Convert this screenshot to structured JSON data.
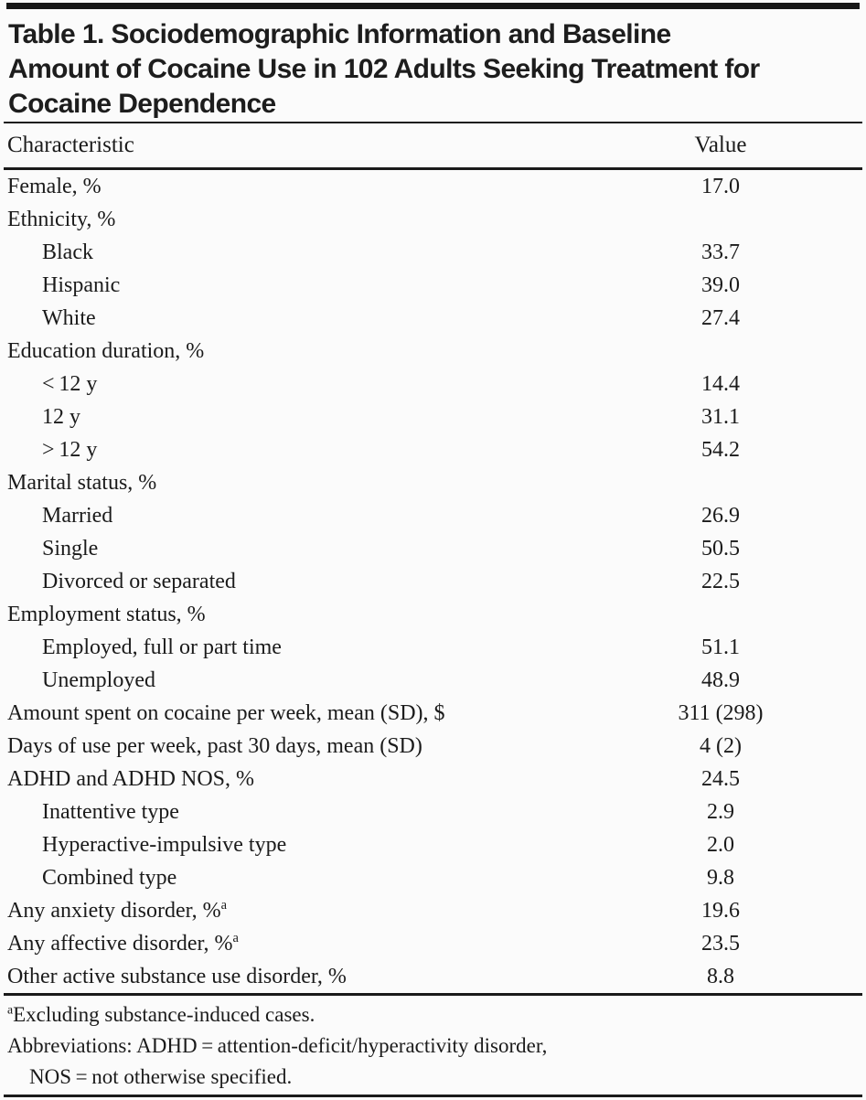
{
  "table": {
    "title_lines": [
      "Table 1. Sociodemographic Information and Baseline",
      "Amount of Cocaine Use in 102 Adults Seeking Treatment for",
      "Cocaine Dependence"
    ],
    "columns": {
      "characteristic": "Characteristic",
      "value": "Value"
    },
    "rows": [
      {
        "label": "Female, %",
        "value": "17.0",
        "indent": false
      },
      {
        "label": "Ethnicity, %",
        "value": "",
        "indent": false
      },
      {
        "label": "Black",
        "value": "33.7",
        "indent": true
      },
      {
        "label": "Hispanic",
        "value": "39.0",
        "indent": true
      },
      {
        "label": "White",
        "value": "27.4",
        "indent": true
      },
      {
        "label": "Education duration, %",
        "value": "",
        "indent": false
      },
      {
        "label": "< 12 y",
        "value": "14.4",
        "indent": true
      },
      {
        "label": "12 y",
        "value": "31.1",
        "indent": true
      },
      {
        "label": "> 12 y",
        "value": "54.2",
        "indent": true
      },
      {
        "label": "Marital status, %",
        "value": "",
        "indent": false
      },
      {
        "label": "Married",
        "value": "26.9",
        "indent": true
      },
      {
        "label": "Single",
        "value": "50.5",
        "indent": true
      },
      {
        "label": "Divorced or separated",
        "value": "22.5",
        "indent": true
      },
      {
        "label": "Employment status, %",
        "value": "",
        "indent": false
      },
      {
        "label": "Employed, full or part time",
        "value": "51.1",
        "indent": true
      },
      {
        "label": "Unemployed",
        "value": "48.9",
        "indent": true
      },
      {
        "label": "Amount spent on cocaine per week, mean (SD), $",
        "value": "311 (298)",
        "indent": false
      },
      {
        "label": "Days of use per week, past 30 days, mean (SD)",
        "value": "4 (2)",
        "indent": false
      },
      {
        "label": "ADHD and ADHD NOS, %",
        "value": "24.5",
        "indent": false
      },
      {
        "label": "Inattentive type",
        "value": "2.9",
        "indent": true
      },
      {
        "label": "Hyperactive-impulsive type",
        "value": "2.0",
        "indent": true
      },
      {
        "label": "Combined type",
        "value": "9.8",
        "indent": true
      },
      {
        "label": "Any anxiety disorder, %",
        "sup": "a",
        "value": "19.6",
        "indent": false
      },
      {
        "label": "Any affective disorder, %",
        "sup": "a",
        "value": "23.5",
        "indent": false
      },
      {
        "label": "Other active substance use disorder, %",
        "value": "8.8",
        "indent": false
      }
    ],
    "footnotes": [
      {
        "sup": "a",
        "text": "Excluding substance-induced cases.",
        "indent": false
      },
      {
        "sup": "",
        "text": "Abbreviations: ADHD = attention-deficit/hyperactivity disorder,",
        "indent": false
      },
      {
        "sup": "",
        "text": "NOS = not otherwise specified.",
        "indent": true
      }
    ]
  }
}
